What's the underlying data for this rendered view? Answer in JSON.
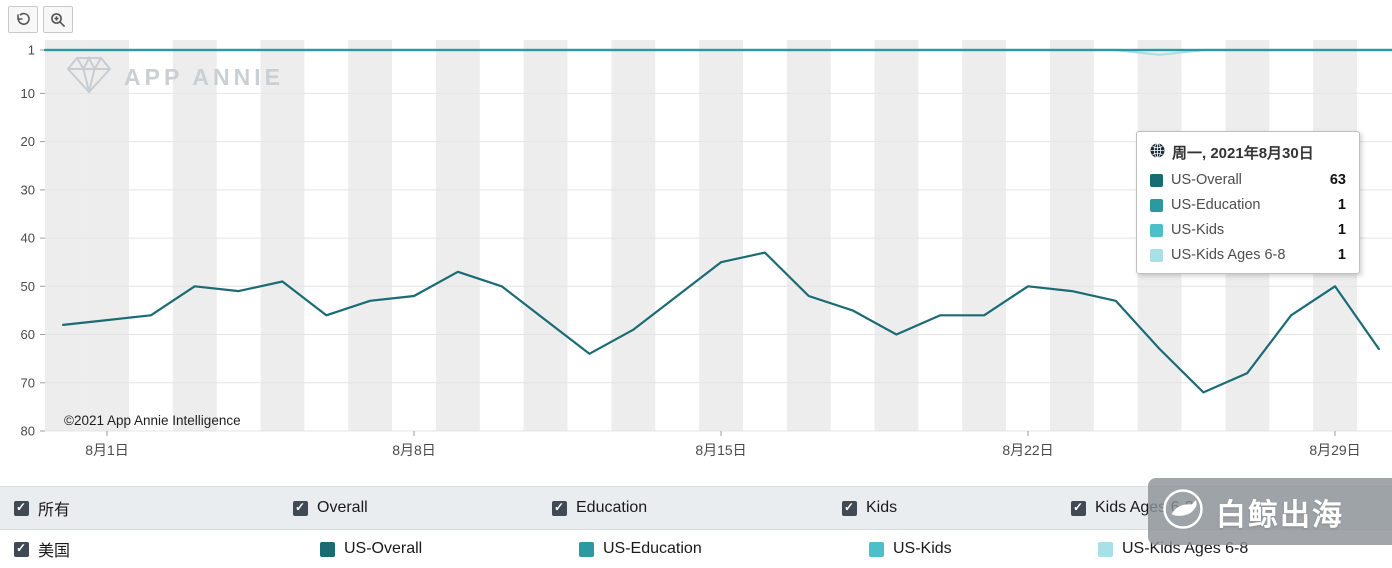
{
  "toolbar": {
    "reset_icon": "reset-view",
    "zoom_icon": "magnifier-plus"
  },
  "watermark": {
    "brand": "APP ANNIE",
    "copyright": "©2021 App Annie Intelligence",
    "overlay": "白鲸出海"
  },
  "tooltip": {
    "title": "周一, 2021年8月30日",
    "rows": [
      {
        "label": "US-Overall",
        "value": "63",
        "color": "#1b6b74"
      },
      {
        "label": "US-Education",
        "value": "1",
        "color": "#2b9aa0"
      },
      {
        "label": "US-Kids",
        "value": "1",
        "color": "#4cc0c9"
      },
      {
        "label": "US-Kids Ages 6-8",
        "value": "1",
        "color": "#a7e0e6"
      }
    ]
  },
  "legend": {
    "row1": [
      {
        "label": "所有",
        "checked": true
      },
      {
        "label": "Overall",
        "checked": true
      },
      {
        "label": "Education",
        "checked": true
      },
      {
        "label": "Kids",
        "checked": true
      },
      {
        "label": "Kids Ages 6-8",
        "checked": true
      }
    ],
    "row2_checkbox": {
      "label": "美国",
      "checked": true
    },
    "row2": [
      {
        "label": "US-Overall",
        "color": "#1b6b74"
      },
      {
        "label": "US-Education",
        "color": "#2b9aa0"
      },
      {
        "label": "US-Kids",
        "color": "#4cc0c9"
      },
      {
        "label": "US-Kids Ages 6-8",
        "color": "#a7e0e6"
      }
    ]
  },
  "chart_data": {
    "type": "line",
    "title": "",
    "xlabel": "",
    "ylabel": "",
    "y_inverted": true,
    "ylim": [
      1,
      80
    ],
    "y_ticks": [
      1,
      10,
      20,
      30,
      40,
      50,
      60,
      70,
      80
    ],
    "grid": true,
    "legend_position": "bottom",
    "days": [
      31,
      1,
      2,
      3,
      4,
      5,
      6,
      7,
      8,
      9,
      10,
      11,
      12,
      13,
      14,
      15,
      16,
      17,
      18,
      19,
      20,
      21,
      22,
      23,
      24,
      25,
      26,
      27,
      28,
      29,
      30
    ],
    "x_ticks": [
      {
        "label": "8月1日",
        "index": 1
      },
      {
        "label": "8月8日",
        "index": 8
      },
      {
        "label": "8月15日",
        "index": 15
      },
      {
        "label": "8月22日",
        "index": 22
      },
      {
        "label": "8月29日",
        "index": 29
      }
    ],
    "stripe_color": "#ededed",
    "series": [
      {
        "name": "US-Overall",
        "color": "#1b6b74",
        "values": [
          58,
          57,
          56,
          50,
          51,
          49,
          56,
          53,
          52,
          47,
          50,
          57,
          64,
          59,
          52,
          45,
          43,
          52,
          55,
          60,
          56,
          56,
          50,
          51,
          53,
          63,
          72,
          68,
          56,
          50,
          63
        ]
      },
      {
        "name": "US-Education",
        "color": "#2b9aa0",
        "values": [
          1,
          1,
          1,
          1,
          1,
          1,
          1,
          1,
          1,
          1,
          1,
          1,
          1,
          1,
          1,
          1,
          1,
          1,
          1,
          1,
          1,
          1,
          1,
          1,
          1,
          1,
          1,
          1,
          1,
          1,
          1
        ]
      },
      {
        "name": "US-Kids",
        "color": "#4cc0c9",
        "values": [
          1,
          1,
          1,
          1,
          1,
          1,
          1,
          1,
          1,
          1,
          1,
          1,
          1,
          1,
          1,
          1,
          1,
          1,
          1,
          1,
          1,
          1,
          1,
          1,
          1,
          1,
          1,
          1,
          1,
          1,
          1
        ]
      },
      {
        "name": "US-Kids Ages 6-8",
        "color": "#a7e0e6",
        "values": [
          1,
          1,
          1,
          1,
          1,
          1,
          1,
          1,
          1,
          1,
          1,
          1,
          1,
          1,
          1,
          1,
          1,
          1,
          1,
          1,
          1,
          1,
          1,
          1,
          1,
          2,
          1,
          1,
          1,
          1,
          1
        ]
      }
    ],
    "draw_order": [
      3,
      2,
      1,
      0
    ]
  }
}
